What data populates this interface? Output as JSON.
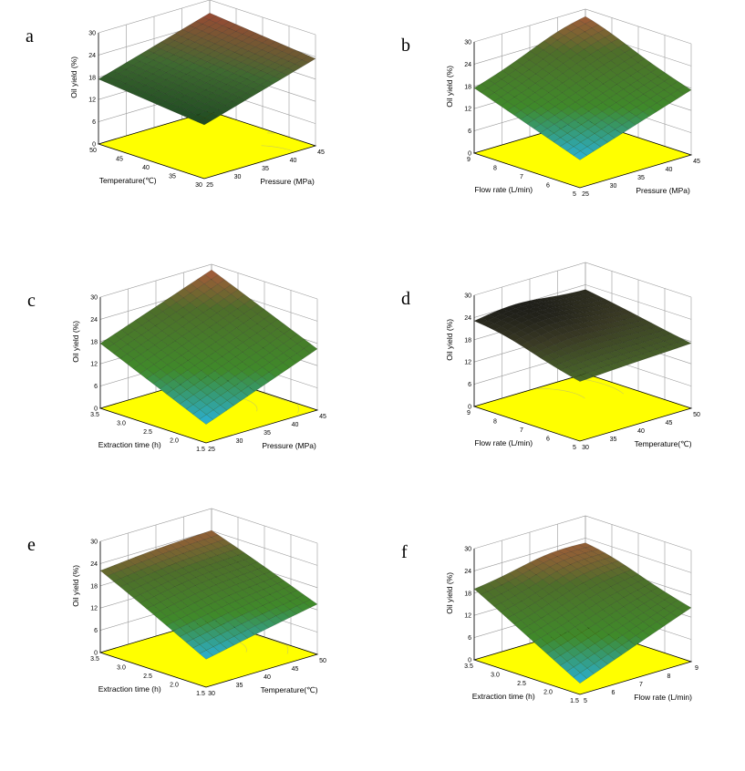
{
  "colors": {
    "floor": "#ffff00",
    "floor_contour": "#cccc55",
    "grid": "#9a9a9a",
    "low": "#2ab0d8",
    "mid": "#3f8a2a",
    "high_warm": "#a85a3a",
    "edge_dark": "#111111"
  },
  "chart_data": [
    {
      "panel": "a",
      "type": "surface3d",
      "title": "",
      "xlabel": "Temperature(℃)",
      "ylabel": "Pressure (MPa)",
      "zlabel": "Oil yield (%)",
      "x_ticks": [
        "30",
        "35",
        "40",
        "45",
        "50"
      ],
      "y_ticks": [
        "25",
        "30",
        "35",
        "40",
        "45"
      ],
      "z_ticks": [
        "0",
        "6",
        "12",
        "18",
        "24",
        "30"
      ],
      "xlim": [
        30,
        50
      ],
      "ylim": [
        25,
        45
      ],
      "zlim": [
        0,
        30
      ],
      "corners": {
        "x_max_y_min": 17.5,
        "x_min_y_min": 14.5,
        "x_min_y_max": 23.5,
        "x_max_y_max": 26.5
      },
      "peak": {
        "x": 0.05,
        "y": 0.5,
        "z": 0
      },
      "palette": "warm"
    },
    {
      "panel": "b",
      "type": "surface3d",
      "title": "",
      "xlabel": "Flow rate (L/min)",
      "ylabel": "Pressure (MPa)",
      "zlabel": "Oil yield (%)",
      "x_ticks": [
        "5",
        "6",
        "7",
        "8",
        "9"
      ],
      "y_ticks": [
        "25",
        "30",
        "35",
        "40",
        "45"
      ],
      "z_ticks": [
        "0",
        "6",
        "12",
        "18",
        "24",
        "30"
      ],
      "xlim": [
        5,
        9
      ],
      "ylim": [
        25,
        45
      ],
      "zlim": [
        0,
        30
      ],
      "corners": {
        "x_max_y_min": 17.5,
        "x_min_y_min": 7.5,
        "x_min_y_max": 17.5,
        "x_max_y_max": 26.5
      },
      "peak": {
        "x": 0.9,
        "y": 0.8,
        "z": 2.0
      },
      "palette": "green"
    },
    {
      "panel": "c",
      "type": "surface3d",
      "title": "",
      "xlabel": "Extraction time (h)",
      "ylabel": "Pressure (MPa)",
      "zlabel": "Oil yield (%)",
      "x_ticks": [
        "1.5",
        "2.0",
        "2.5",
        "3.0",
        "3.5"
      ],
      "y_ticks": [
        "25",
        "30",
        "35",
        "40",
        "45"
      ],
      "z_ticks": [
        "0",
        "6",
        "12",
        "18",
        "24",
        "30"
      ],
      "xlim": [
        1.5,
        3.5
      ],
      "ylim": [
        25,
        45
      ],
      "zlim": [
        0,
        30
      ],
      "corners": {
        "x_max_y_min": 17.5,
        "x_min_y_min": 5.0,
        "x_min_y_max": 16.5,
        "x_max_y_max": 28.5
      },
      "peak": {
        "x": 0.5,
        "y": 0.5,
        "z": 0
      },
      "palette": "green"
    },
    {
      "panel": "d",
      "type": "surface3d",
      "title": "",
      "xlabel": "Flow rate (L/min)",
      "ylabel": "Temperature(℃)",
      "zlabel": "Oil yield (%)",
      "x_ticks": [
        "5",
        "6",
        "7",
        "8",
        "9"
      ],
      "y_ticks": [
        "30",
        "35",
        "40",
        "45",
        "50"
      ],
      "z_ticks": [
        "0",
        "6",
        "12",
        "18",
        "24",
        "30"
      ],
      "xlim": [
        5,
        9
      ],
      "ylim": [
        30,
        50
      ],
      "zlim": [
        0,
        30
      ],
      "corners": {
        "x_max_y_min": 22.0,
        "x_min_y_min": 16.0,
        "x_min_y_max": 17.5,
        "x_max_y_max": 22.5
      },
      "peak": {
        "x": 0.75,
        "y": 0.35,
        "z": 3.0
      },
      "palette": "dark"
    },
    {
      "panel": "e",
      "type": "surface3d",
      "title": "",
      "xlabel": "Extraction time (h)",
      "ylabel": "Temperature(℃)",
      "zlabel": "Oil yield (%)",
      "x_ticks": [
        "1.5",
        "2.0",
        "2.5",
        "3.0",
        "3.5"
      ],
      "y_ticks": [
        "30",
        "35",
        "40",
        "45",
        "50"
      ],
      "z_ticks": [
        "0",
        "6",
        "12",
        "18",
        "24",
        "30"
      ],
      "xlim": [
        1.5,
        3.5
      ],
      "ylim": [
        30,
        50
      ],
      "zlim": [
        0,
        30
      ],
      "corners": {
        "x_max_y_min": 22.0,
        "x_min_y_min": 7.5,
        "x_min_y_max": 13.5,
        "x_max_y_max": 24.0
      },
      "peak": {
        "x": 0.6,
        "y": 0.5,
        "z": 1.0
      },
      "palette": "green"
    },
    {
      "panel": "f",
      "type": "surface3d",
      "title": "",
      "xlabel": "Extraction time (h)",
      "ylabel": "Flow rate (L/min)",
      "zlabel": "Oil yield (%)",
      "x_ticks": [
        "1.5",
        "2.0",
        "2.5",
        "3.0",
        "3.5"
      ],
      "y_ticks": [
        "5",
        "6",
        "7",
        "8",
        "9"
      ],
      "z_ticks": [
        "0",
        "6",
        "12",
        "18",
        "24",
        "30"
      ],
      "xlim": [
        1.5,
        3.5
      ],
      "ylim": [
        5,
        9
      ],
      "zlim": [
        0,
        30
      ],
      "corners": {
        "x_max_y_min": 19.0,
        "x_min_y_min": 3.0,
        "x_min_y_max": 14.5,
        "x_max_y_max": 21.5
      },
      "peak": {
        "x": 0.8,
        "y": 0.7,
        "z": 2.5
      },
      "palette": "green"
    }
  ]
}
